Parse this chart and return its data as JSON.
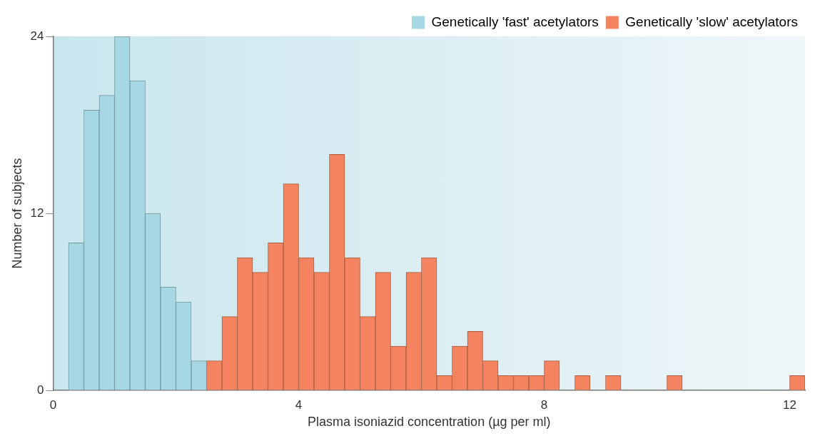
{
  "chart_data": {
    "type": "histogram",
    "xlabel": "Plasma isoniazid concentration (µg per ml)",
    "ylabel": "Number of subjects",
    "bins": [
      0.25,
      0.5,
      0.75,
      1,
      1.25,
      1.5,
      1.75,
      2,
      2.25,
      2.5,
      2.75,
      3,
      3.25,
      3.5,
      3.75,
      4,
      4.25,
      4.5,
      4.75,
      5,
      5.25,
      5.5,
      5.75,
      6,
      6.25,
      6.5,
      6.75,
      7,
      7.25,
      7.5,
      7.75,
      8,
      8.25,
      8.5,
      8.75,
      9,
      9.25,
      9.5,
      9.75,
      10,
      10.25,
      10.5,
      10.75,
      11,
      11.25,
      11.5,
      11.75,
      12,
      12.25
    ],
    "series": [
      {
        "name": "Genetically 'fast' acetylators",
        "color": "#a6d8e4",
        "values": [
          10,
          19,
          20,
          24,
          21,
          12,
          7,
          6,
          2,
          null,
          null,
          null,
          null,
          null,
          null,
          null,
          null,
          null,
          null,
          null,
          null,
          null,
          null,
          null,
          null,
          null,
          null,
          null,
          null,
          null,
          null,
          null,
          null,
          null,
          null,
          null,
          null,
          null,
          null,
          null,
          null,
          null,
          null,
          null,
          null,
          null,
          null,
          null
        ]
      },
      {
        "name": "Genetically 'slow' acetylators",
        "color": "#f4845f",
        "values": [
          null,
          null,
          null,
          null,
          null,
          null,
          null,
          null,
          null,
          2,
          5,
          9,
          8,
          10,
          14,
          9,
          8,
          16,
          9,
          5,
          8,
          3,
          8,
          9,
          1,
          3,
          4,
          2,
          1,
          1,
          1,
          2,
          0,
          1,
          0,
          1,
          0,
          0,
          0,
          1,
          0,
          0,
          0,
          0,
          0,
          0,
          0,
          1
        ]
      }
    ],
    "xlim": [
      0,
      12.25
    ],
    "xticks": [
      0,
      4,
      8,
      12
    ],
    "ylim": [
      0,
      24
    ],
    "yticks": [
      0,
      12,
      24
    ],
    "grid": false,
    "legend": "top right"
  }
}
